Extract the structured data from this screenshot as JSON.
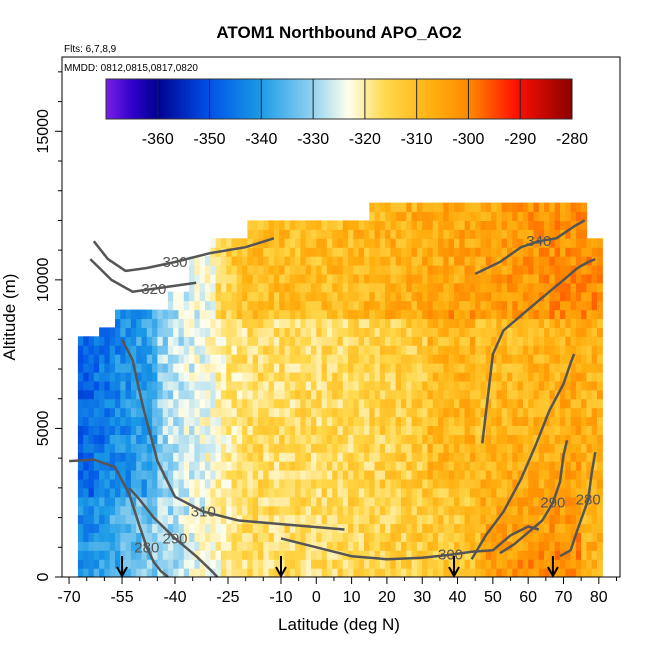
{
  "chart_data": {
    "type": "heatmap",
    "title": "ATOM1 Northbound APO_AO2",
    "annotations": [
      "Flts: 6,7,8,9",
      "MMDD: 0812,0815,0817,0820"
    ],
    "xlabel": "Latitude (deg N)",
    "ylabel": "Altitude (m)",
    "xlim": [
      -72,
      86
    ],
    "ylim": [
      0,
      17500
    ],
    "x_ticks": [
      -70,
      -55,
      -40,
      -25,
      -10,
      0,
      10,
      20,
      30,
      40,
      50,
      60,
      70,
      80
    ],
    "y_ticks": [
      0,
      5000,
      10000,
      15000
    ],
    "colorbar": {
      "placement": "top",
      "range": [
        -370,
        -280
      ],
      "ticks": [
        -360,
        -350,
        -340,
        -330,
        -320,
        -310,
        -300,
        -290,
        -280
      ]
    },
    "contours": [
      {
        "label": "280",
        "x": [
          -70,
          -63,
          -57,
          -53,
          -50,
          -48,
          -46,
          -44,
          -43,
          -42
        ],
        "y": [
          3900,
          3950,
          3700,
          2800,
          1700,
          1000,
          500,
          200,
          100,
          0
        ]
      },
      {
        "label": "290",
        "x": [
          -53,
          -50,
          -46,
          -40,
          -34,
          -30,
          -28
        ],
        "y": [
          3000,
          2600,
          2000,
          1300,
          700,
          250,
          0
        ]
      },
      {
        "label": "310",
        "x": [
          -55,
          -52,
          -49,
          -45,
          -40,
          -32,
          -22,
          -12,
          -2,
          8
        ],
        "y": [
          8000,
          7300,
          5700,
          3900,
          2700,
          2200,
          1900,
          1800,
          1700,
          1600
        ]
      },
      {
        "label": "300",
        "x": [
          -10,
          0,
          10,
          20,
          30,
          38,
          44,
          50,
          55,
          60,
          63
        ],
        "y": [
          1300,
          1000,
          700,
          600,
          650,
          750,
          850,
          900,
          1400,
          1700,
          1600
        ]
      },
      {
        "label": "330",
        "x": [
          -63,
          -59,
          -54,
          -48,
          -40,
          -30,
          -20,
          -12
        ],
        "y": [
          11300,
          10700,
          10300,
          10400,
          10600,
          10900,
          11100,
          11400
        ]
      },
      {
        "label": "320",
        "x": [
          -64,
          -58,
          -52,
          -46,
          -40,
          -34
        ],
        "y": [
          10700,
          10000,
          9600,
          9700,
          9800,
          9900
        ]
      },
      {
        "label": "340",
        "x": [
          45,
          52,
          58,
          63,
          68,
          73,
          76
        ],
        "y": [
          10200,
          10600,
          11100,
          11300,
          11400,
          11800,
          12000
        ]
      },
      {
        "label": "",
        "x": [
          47,
          50,
          53,
          58,
          62,
          66,
          70,
          74,
          77,
          79
        ],
        "y": [
          4500,
          7500,
          8300,
          8800,
          9200,
          9600,
          10000,
          10400,
          10600,
          10700
        ]
      },
      {
        "label": "",
        "x": [
          44,
          48,
          53,
          58,
          62,
          66,
          70,
          72,
          73
        ],
        "y": [
          600,
          1400,
          2200,
          3300,
          4400,
          5600,
          6500,
          7200,
          7500
        ]
      },
      {
        "label": "280",
        "x": [
          69,
          72,
          74,
          77,
          78,
          79
        ],
        "y": [
          700,
          900,
          1600,
          2600,
          3500,
          4200
        ]
      },
      {
        "label": "290",
        "x": [
          52,
          56,
          60,
          64,
          67,
          69,
          70,
          71
        ],
        "y": [
          800,
          1100,
          1500,
          1900,
          2500,
          3200,
          4100,
          4600
        ]
      }
    ],
    "flight_markers_latitude": [
      -55,
      -10,
      39,
      67
    ]
  }
}
